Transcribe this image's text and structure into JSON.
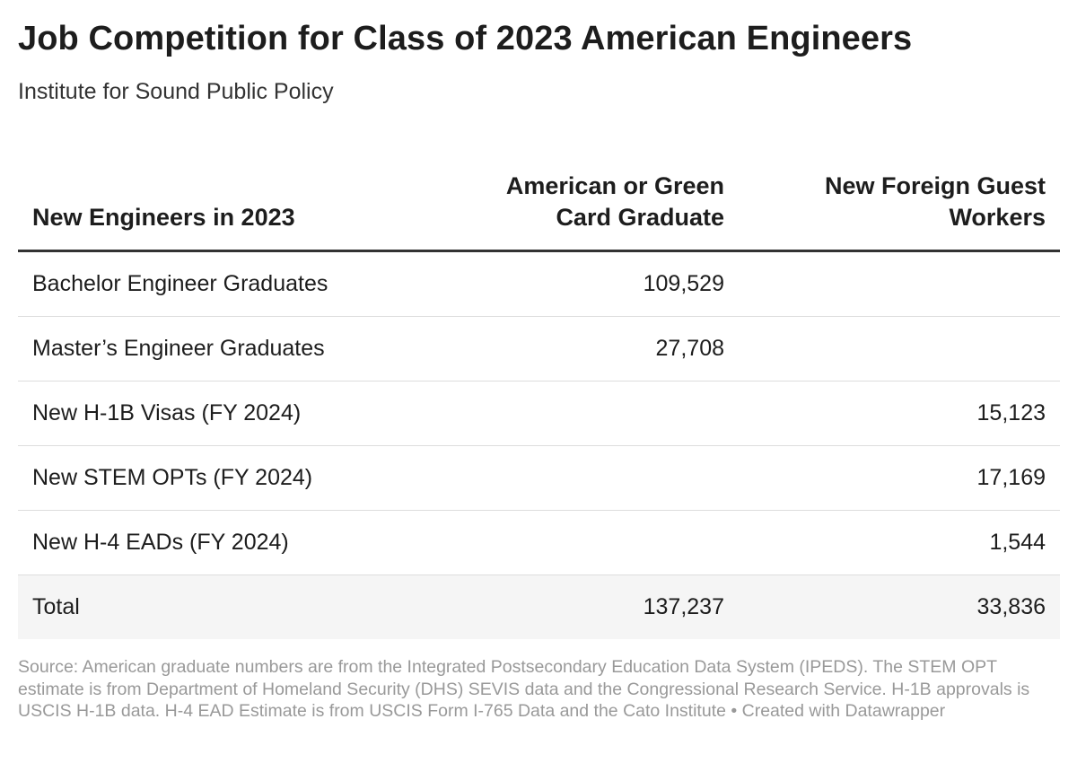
{
  "chart_data": {
    "type": "table",
    "title": "Job Competition for Class of 2023 American Engineers",
    "subtitle": "Institute for Sound Public Policy",
    "columns": [
      "New Engineers in 2023",
      "American or Green Card Graduate",
      "New Foreign Guest Workers"
    ],
    "rows": [
      {
        "label": "Bachelor Engineer Graduates",
        "american": "109,529",
        "foreign": ""
      },
      {
        "label": "Master’s Engineer Graduates",
        "american": "27,708",
        "foreign": ""
      },
      {
        "label": "New H-1B Visas (FY 2024)",
        "american": "",
        "foreign": "15,123"
      },
      {
        "label": "New STEM OPTs (FY 2024)",
        "american": "",
        "foreign": "17,169"
      },
      {
        "label": "New H-4 EADs (FY 2024)",
        "american": "",
        "foreign": "1,544"
      },
      {
        "label": "Total",
        "american": "137,237",
        "foreign": "33,836"
      }
    ],
    "notes": "Source: American graduate numbers are from the Integrated Postsecondary Education Data System (IPEDS). The STEM OPT estimate is from Department of Homeland Security (DHS) SEVIS data and the Congressional Research Service. H-1B approvals is USCIS H-1B data. H-4 EAD Estimate is from USCIS Form I-765 Data and the Cato Institute • Created with Datawrapper"
  }
}
